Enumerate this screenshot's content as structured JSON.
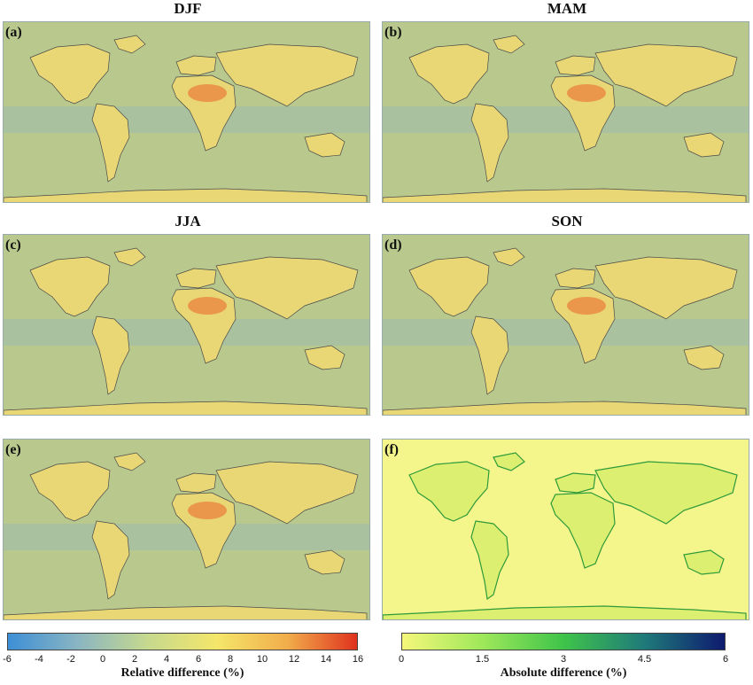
{
  "panels": [
    {
      "key": "a",
      "label": "(a)",
      "title": "DJF"
    },
    {
      "key": "b",
      "label": "(b)",
      "title": "MAM"
    },
    {
      "key": "c",
      "label": "(c)",
      "title": "JJA"
    },
    {
      "key": "d",
      "label": "(d)",
      "title": "SON"
    },
    {
      "key": "e",
      "label": "(e)",
      "title": ""
    },
    {
      "key": "f",
      "label": "(f)",
      "title": ""
    }
  ],
  "colorbars": {
    "relative": {
      "label": "Relative difference (%)",
      "ticks": [
        "-6",
        "-4",
        "-2",
        "0",
        "2",
        "4",
        "6",
        "8",
        "10",
        "12",
        "14",
        "16"
      ],
      "range": [
        -6,
        16
      ],
      "colors": [
        "#3d8fd6",
        "#8ab5c2",
        "#c6d98e",
        "#f5e66a",
        "#f1ad4b",
        "#e0321e"
      ]
    },
    "absolute": {
      "label": "Absolute difference (%)",
      "ticks": [
        "0",
        "1.5",
        "3",
        "4.5",
        "6"
      ],
      "range": [
        0,
        6
      ],
      "colors": [
        "#f5f77a",
        "#9ee85a",
        "#3fc44a",
        "#1f7a7a",
        "#0e1a6e"
      ]
    }
  },
  "chart_data": {
    "type": "heatmap",
    "description_basis": "global maps of relative/absolute difference",
    "panels": [
      {
        "label": "(a)",
        "title": "DJF",
        "variable": "Relative difference (%)",
        "scale": [
          -6,
          16
        ]
      },
      {
        "label": "(b)",
        "title": "MAM",
        "variable": "Relative difference (%)",
        "scale": [
          -6,
          16
        ]
      },
      {
        "label": "(c)",
        "title": "JJA",
        "variable": "Relative difference (%)",
        "scale": [
          -6,
          16
        ]
      },
      {
        "label": "(d)",
        "title": "SON",
        "variable": "Relative difference (%)",
        "scale": [
          -6,
          16
        ]
      },
      {
        "label": "(e)",
        "title": "",
        "variable": "Relative difference (%)",
        "scale": [
          -6,
          16
        ]
      },
      {
        "label": "(f)",
        "title": "",
        "variable": "Absolute difference (%)",
        "scale": [
          0,
          6
        ]
      }
    ]
  }
}
